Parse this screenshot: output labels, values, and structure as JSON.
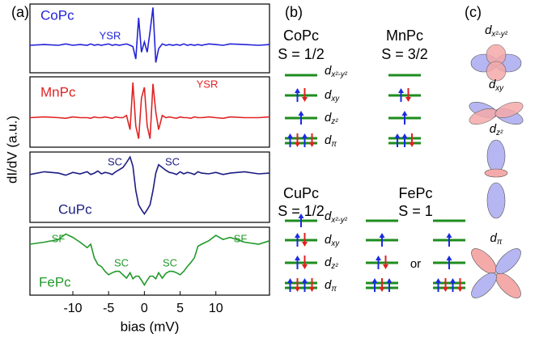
{
  "panel_labels": [
    "(a)",
    "(b)",
    "(c)"
  ],
  "chart_data": [
    {
      "type": "line",
      "label": "CoPc",
      "color": "#2323d8",
      "annotations": [
        "YSR"
      ],
      "xlim": [
        -16,
        17.5
      ],
      "ylim": [
        0,
        1
      ],
      "x": [
        -16,
        -14,
        -12,
        -11,
        -10,
        -9,
        -8,
        -7.5,
        -7,
        -6.5,
        -6,
        -5.5,
        -5,
        -4.5,
        -4,
        -3.5,
        -3,
        -2.5,
        -2,
        -1.6,
        -1.2,
        -0.8,
        -0.4,
        0,
        0.4,
        0.8,
        1.2,
        1.6,
        2,
        2.5,
        3,
        3.5,
        4,
        4.5,
        5,
        5.5,
        6,
        6.5,
        7,
        7.5,
        8,
        9,
        10,
        11,
        12,
        14,
        16,
        17.5
      ],
      "values": [
        0.4,
        0.41,
        0.4,
        0.42,
        0.4,
        0.41,
        0.4,
        0.42,
        0.4,
        0.41,
        0.4,
        0.41,
        0.42,
        0.4,
        0.41,
        0.4,
        0.41,
        0.42,
        0.4,
        0.38,
        0.2,
        0.8,
        0.3,
        0.45,
        0.3,
        0.6,
        0.95,
        0.15,
        0.35,
        0.42,
        0.4,
        0.41,
        0.4,
        0.41,
        0.4,
        0.42,
        0.4,
        0.41,
        0.4,
        0.41,
        0.4,
        0.42,
        0.41,
        0.4,
        0.42,
        0.41,
        0.4,
        0.41
      ]
    },
    {
      "type": "line",
      "label": "MnPc",
      "color": "#e02424",
      "annotations": [
        "YSR"
      ],
      "xlim": [
        -16,
        17.5
      ],
      "ylim": [
        0,
        1
      ],
      "x": [
        -16,
        -14,
        -12,
        -11,
        -10,
        -9,
        -8,
        -7.5,
        -7,
        -6.5,
        -6,
        -5.5,
        -5,
        -4.5,
        -4,
        -3.5,
        -3,
        -2.5,
        -2,
        -1.6,
        -1.2,
        -0.8,
        -0.4,
        0,
        0.4,
        0.8,
        1.2,
        1.6,
        2,
        2.5,
        3,
        3.5,
        4,
        4.5,
        5,
        5.5,
        6,
        6.5,
        7,
        7.5,
        8,
        9,
        10,
        11,
        12,
        14,
        16,
        17.5
      ],
      "values": [
        0.42,
        0.43,
        0.42,
        0.41,
        0.43,
        0.42,
        0.42,
        0.41,
        0.43,
        0.42,
        0.42,
        0.43,
        0.42,
        0.41,
        0.43,
        0.42,
        0.42,
        0.45,
        0.25,
        0.92,
        0.3,
        0.12,
        0.7,
        0.85,
        0.3,
        0.12,
        0.9,
        0.5,
        0.25,
        0.45,
        0.42,
        0.43,
        0.42,
        0.41,
        0.43,
        0.42,
        0.42,
        0.41,
        0.43,
        0.42,
        0.42,
        0.43,
        0.42,
        0.41,
        0.43,
        0.42,
        0.42,
        0.43
      ]
    },
    {
      "type": "line",
      "label": "CuPc",
      "color": "#1c1c82",
      "annotations": [
        "SC",
        "SC"
      ],
      "xlim": [
        -16,
        17.5
      ],
      "ylim": [
        0,
        1
      ],
      "x": [
        -16,
        -14,
        -12,
        -11,
        -10,
        -9,
        -8,
        -7.5,
        -7,
        -6.5,
        -6,
        -5.5,
        -5,
        -4.5,
        -4,
        -3.5,
        -3,
        -2.5,
        -2,
        -1.6,
        -1.2,
        -0.8,
        -0.4,
        0,
        0.4,
        0.8,
        1.2,
        1.6,
        2,
        2.5,
        3,
        3.5,
        4,
        4.5,
        5,
        5.5,
        6,
        6.5,
        7,
        7.5,
        8,
        9,
        10,
        11,
        12,
        14,
        16,
        17.5
      ],
      "values": [
        0.68,
        0.72,
        0.7,
        0.67,
        0.71,
        0.69,
        0.72,
        0.68,
        0.7,
        0.73,
        0.69,
        0.71,
        0.7,
        0.68,
        0.72,
        0.75,
        0.78,
        0.85,
        0.93,
        0.8,
        0.45,
        0.25,
        0.18,
        0.12,
        0.18,
        0.25,
        0.45,
        0.7,
        0.82,
        0.78,
        0.74,
        0.71,
        0.7,
        0.68,
        0.72,
        0.69,
        0.71,
        0.7,
        0.68,
        0.72,
        0.7,
        0.69,
        0.71,
        0.68,
        0.7,
        0.72,
        0.69,
        0.7
      ]
    },
    {
      "type": "line",
      "label": "FePc",
      "color": "#22992a",
      "annotations": [
        "SF",
        "SF",
        "SC",
        "SC"
      ],
      "xlim": [
        -16,
        17.5
      ],
      "ylim": [
        0,
        1
      ],
      "xlabel": "bias (mV)",
      "ylabel": "dI/dV (a.u.)",
      "xticks": [
        -10,
        -5,
        0,
        5,
        10
      ],
      "x": [
        -16,
        -14,
        -12,
        -11,
        -10,
        -9,
        -8,
        -7.5,
        -7,
        -6.5,
        -6,
        -5.5,
        -5,
        -4.5,
        -4,
        -3.5,
        -3,
        -2.5,
        -2,
        -1.6,
        -1.2,
        -0.8,
        -0.4,
        0,
        0.4,
        0.8,
        1.2,
        1.6,
        2,
        2.5,
        3,
        3.5,
        4,
        4.5,
        5,
        5.5,
        6,
        6.5,
        7,
        7.5,
        8,
        9,
        10,
        11,
        12,
        14,
        16,
        17.5
      ],
      "values": [
        0.75,
        0.78,
        0.82,
        0.9,
        0.85,
        0.78,
        0.7,
        0.75,
        0.55,
        0.45,
        0.42,
        0.35,
        0.3,
        0.33,
        0.35,
        0.35,
        0.3,
        0.25,
        0.33,
        0.24,
        0.28,
        0.28,
        0.22,
        0.15,
        0.22,
        0.28,
        0.28,
        0.24,
        0.33,
        0.25,
        0.32,
        0.35,
        0.35,
        0.33,
        0.3,
        0.35,
        0.42,
        0.48,
        0.55,
        0.72,
        0.75,
        0.8,
        0.88,
        0.82,
        0.85,
        0.78,
        0.75,
        0.8
      ]
    }
  ],
  "orbital_labels": [
    {
      "symbol": "d",
      "subscript": "x²-y²"
    },
    {
      "symbol": "d",
      "subscript": "xy"
    },
    {
      "symbol": "d",
      "subscript": "z²"
    },
    {
      "symbol": "d",
      "subscript": "π"
    }
  ],
  "level_diagrams": [
    {
      "molecule": "CoPc",
      "spin": "S = 1/2",
      "configurations": [
        [
          "",
          "↑↓",
          "↑",
          "↑↓↑↓"
        ]
      ]
    },
    {
      "molecule": "MnPc",
      "spin": "S = 3/2",
      "configurations": [
        [
          "",
          "↑↓",
          "↑",
          "↑↑↓"
        ]
      ]
    },
    {
      "molecule": "CuPc",
      "spin": "S = 1/2",
      "configurations": [
        [
          "↑",
          "↑↓",
          "↑↓",
          "↑↓↑↓"
        ]
      ]
    },
    {
      "molecule": "FePc",
      "spin": "S = 1",
      "configurations": [
        [
          "",
          "↑",
          "↑↓",
          "↑↓↑"
        ],
        [
          "",
          "↑",
          "↑",
          "↑↓↑↓"
        ]
      ],
      "separator": "or"
    }
  ]
}
